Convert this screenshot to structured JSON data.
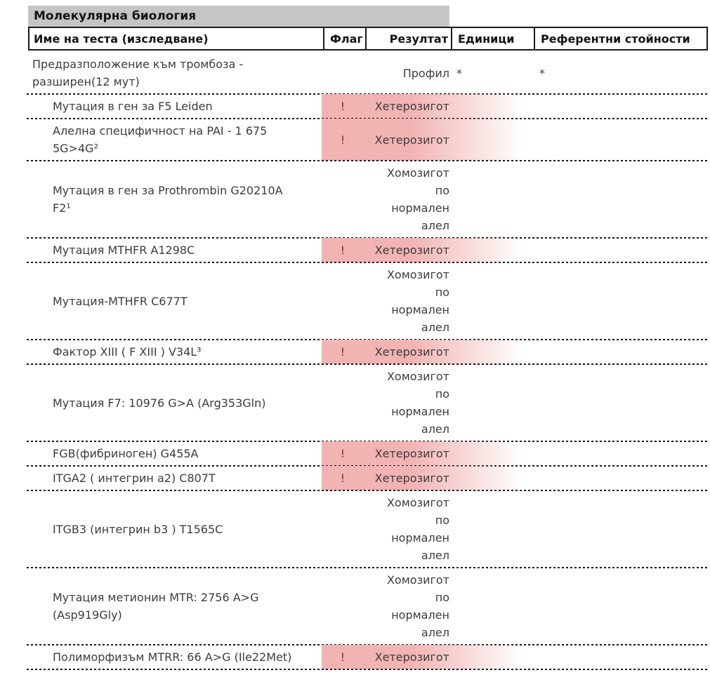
{
  "colors": {
    "section_bar": "#c5c5c5",
    "highlight_pink": "#f2b3b3",
    "flag_text": "#7d3434",
    "body_text": "#3c3c3c",
    "border": "#1a1a1a"
  },
  "section": {
    "title": "Молекулярна биология"
  },
  "table": {
    "headers": {
      "name": "Име на теста (изследване)",
      "flag": "Флаг",
      "result": "Резултат",
      "units": "Единици",
      "reference": "Референтни стойности"
    },
    "rows": [
      {
        "name": "Предразположение към тромбоза -\nразширен(12 мут)",
        "flag": "",
        "result": "Профил",
        "units": "*",
        "reference": "*",
        "indent": false,
        "flagged": false
      },
      {
        "name": "Мутация в ген за F5 Leiden",
        "flag": "!",
        "result": "Хетерозигот",
        "units": "",
        "reference": "",
        "indent": true,
        "flagged": true
      },
      {
        "name": "Алелна специфичност на PAI - 1 675\n5G>4G²",
        "flag": "!",
        "result": "Хетерозигот",
        "units": "",
        "reference": "",
        "indent": true,
        "flagged": true
      },
      {
        "name": "Мутация в ген за Prothrombin G20210A\nF2¹",
        "flag": "",
        "result": "Хомозигот\nпо\nнормален\nалел",
        "units": "",
        "reference": "",
        "indent": true,
        "flagged": false
      },
      {
        "name": "Мутация MTHFR A1298C",
        "flag": "!",
        "result": "Хетерозигот",
        "units": "",
        "reference": "",
        "indent": true,
        "flagged": true
      },
      {
        "name": "Мутация-MTHFR C677T",
        "flag": "",
        "result": "Хомозигот\nпо\nнормален\nалел",
        "units": "",
        "reference": "",
        "indent": true,
        "flagged": false
      },
      {
        "name": "Фактор XIII ( F XIII ) V34L³",
        "flag": "!",
        "result": "Хетерозигот",
        "units": "",
        "reference": "",
        "indent": true,
        "flagged": true
      },
      {
        "name": "Мутация F7: 10976 G>A (Arg353Gln)",
        "flag": "",
        "result": "Хомозигот\nпо\nнормален\nалел",
        "units": "",
        "reference": "",
        "indent": true,
        "flagged": false
      },
      {
        "name": "FGB(фибриноген) G455A",
        "flag": "!",
        "result": "Хетерозигот",
        "units": "",
        "reference": "",
        "indent": true,
        "flagged": true
      },
      {
        "name": "ITGA2 ( интегрин a2) C807T",
        "flag": "!",
        "result": "Хетерозигот",
        "units": "",
        "reference": "",
        "indent": true,
        "flagged": true
      },
      {
        "name": "ITGB3 (интегрин b3 ) T1565C",
        "flag": "",
        "result": "Хомозигот\nпо\nнормален\nалел",
        "units": "",
        "reference": "",
        "indent": true,
        "flagged": false
      },
      {
        "name": "Мутация метионин MTR: 2756 A>G\n(Asp919Gly)",
        "flag": "",
        "result": "Хомозигот\nпо\nнормален\nалел",
        "units": "",
        "reference": "",
        "indent": true,
        "flagged": false
      },
      {
        "name": "Полиморфизъм MTRR: 66 A>G (Ile22Met)",
        "flag": "!",
        "result": "Хетерозигот",
        "units": "",
        "reference": "",
        "indent": true,
        "flagged": true
      }
    ]
  }
}
